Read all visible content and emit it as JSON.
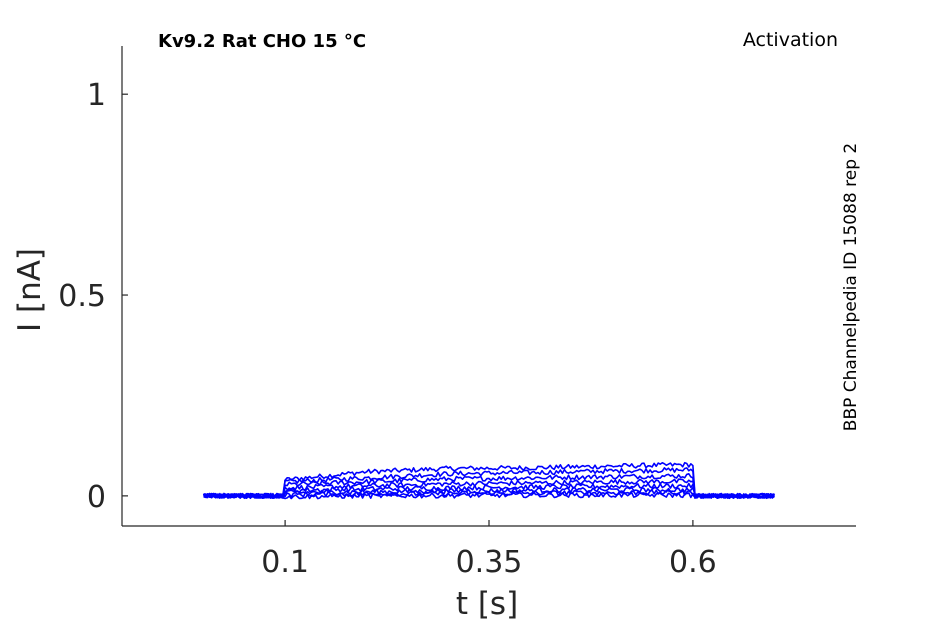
{
  "chart_data": {
    "type": "line",
    "title": "Kv9.2  Rat  CHO  15 °C",
    "protocol": "Activation",
    "source": "BBP Channelpedia ID 15088 rep 2",
    "xlabel": "t [s]",
    "ylabel": "I [nA]",
    "xlim": [
      -0.1,
      0.8
    ],
    "ylim": [
      -0.075,
      1.12
    ],
    "x_ticks": [
      0.1,
      0.35,
      0.6
    ],
    "x_tick_labels": [
      "0.1",
      "0.35",
      "0.6"
    ],
    "y_ticks": [
      0,
      0.5,
      1
    ],
    "y_tick_labels": [
      "0",
      "0.5",
      "1"
    ],
    "grid": false,
    "series_color": "#0000ff",
    "stimulus_window": [
      0.1,
      0.6
    ],
    "x_range": [
      0.0,
      0.7
    ],
    "series": [
      {
        "values_pulse": [
          [
            0.1,
            0.04
          ],
          [
            0.2,
            0.06
          ],
          [
            0.3,
            0.068
          ],
          [
            0.4,
            0.07
          ],
          [
            0.5,
            0.074
          ],
          [
            0.6,
            0.078
          ]
        ]
      },
      {
        "values_pulse": [
          [
            0.1,
            0.035
          ],
          [
            0.2,
            0.045
          ],
          [
            0.3,
            0.055
          ],
          [
            0.4,
            0.058
          ],
          [
            0.5,
            0.062
          ],
          [
            0.6,
            0.065
          ]
        ]
      },
      {
        "values_pulse": [
          [
            0.1,
            0.028
          ],
          [
            0.2,
            0.035
          ],
          [
            0.3,
            0.042
          ],
          [
            0.4,
            0.045
          ],
          [
            0.5,
            0.048
          ],
          [
            0.6,
            0.05
          ]
        ]
      },
      {
        "values_pulse": [
          [
            0.1,
            0.02
          ],
          [
            0.2,
            0.025
          ],
          [
            0.3,
            0.03
          ],
          [
            0.4,
            0.032
          ],
          [
            0.5,
            0.035
          ],
          [
            0.6,
            0.036
          ]
        ]
      },
      {
        "values_pulse": [
          [
            0.1,
            0.014
          ],
          [
            0.2,
            0.017
          ],
          [
            0.3,
            0.02
          ],
          [
            0.4,
            0.022
          ],
          [
            0.5,
            0.024
          ],
          [
            0.6,
            0.025
          ]
        ]
      },
      {
        "values_pulse": [
          [
            0.1,
            0.008
          ],
          [
            0.2,
            0.01
          ],
          [
            0.3,
            0.012
          ],
          [
            0.4,
            0.014
          ],
          [
            0.5,
            0.015
          ],
          [
            0.6,
            0.015
          ]
        ]
      },
      {
        "values_pulse": [
          [
            0.1,
            0.003
          ],
          [
            0.2,
            0.005
          ],
          [
            0.3,
            0.006
          ],
          [
            0.4,
            0.007
          ],
          [
            0.5,
            0.008
          ],
          [
            0.6,
            0.008
          ]
        ]
      },
      {
        "values_pulse": [
          [
            0.1,
            -0.002
          ],
          [
            0.2,
            0.0
          ],
          [
            0.3,
            0.001
          ],
          [
            0.4,
            0.002
          ],
          [
            0.5,
            0.002
          ],
          [
            0.6,
            0.002
          ]
        ]
      }
    ],
    "baseline": 0.0
  }
}
